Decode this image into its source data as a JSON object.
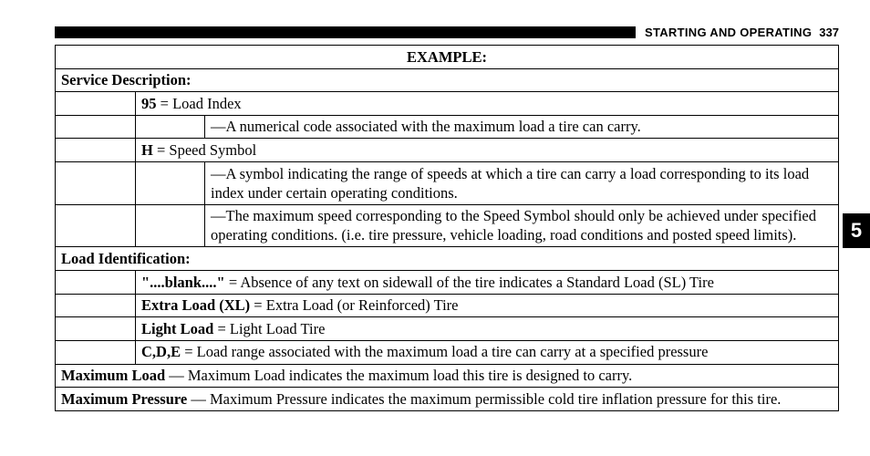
{
  "header": {
    "section_title": "STARTING AND OPERATING",
    "page_number": "337"
  },
  "side_tab": "5",
  "table": {
    "title": "EXAMPLE:",
    "service_description": {
      "label": "Service Description:",
      "rows": [
        {
          "code": "95",
          "eq": " = ",
          "term": "Load Index",
          "notes": [
            "—A numerical code associated with the maximum load a tire can carry."
          ]
        },
        {
          "code": "H",
          "eq": " = ",
          "term": "Speed Symbol",
          "notes": [
            "—A symbol indicating the range of speeds at which a tire can carry a load corresponding to its load index under certain operating conditions.",
            "—The maximum speed corresponding to the Speed Symbol should only be achieved under specified operating conditions. (i.e. tire pressure, vehicle loading, road conditions and posted speed limits)."
          ]
        }
      ]
    },
    "load_identification": {
      "label": "Load Identification:",
      "rows": [
        {
          "code": "\"....blank....\"",
          "eq": " = ",
          "desc": "Absence of any text on sidewall of the tire indicates a Standard Load (SL) Tire"
        },
        {
          "code": "Extra Load (XL)",
          "eq": " = ",
          "desc": "Extra Load (or Reinforced) Tire"
        },
        {
          "code": "Light Load",
          "eq": " = ",
          "desc": "Light Load Tire"
        },
        {
          "code": "C,D,E",
          "eq": " = ",
          "desc": "Load range associated with the maximum load a tire can carry at a specified pressure"
        }
      ]
    },
    "maximum_load": {
      "label": "Maximum Load",
      "sep": " — ",
      "desc": "Maximum Load indicates the maximum load this tire is designed to carry."
    },
    "maximum_pressure": {
      "label": "Maximum Pressure",
      "sep": " — ",
      "desc": "Maximum Pressure indicates the maximum permissible cold tire inflation pressure for this tire."
    }
  },
  "style": {
    "font_family": "Book Antiqua / Palatino serif",
    "body_fontsize_pt": 12,
    "header_fontsize_pt": 10,
    "colors": {
      "text": "#000000",
      "background": "#ffffff",
      "rule": "#000000",
      "tab_bg": "#000000",
      "tab_fg": "#ffffff"
    }
  }
}
